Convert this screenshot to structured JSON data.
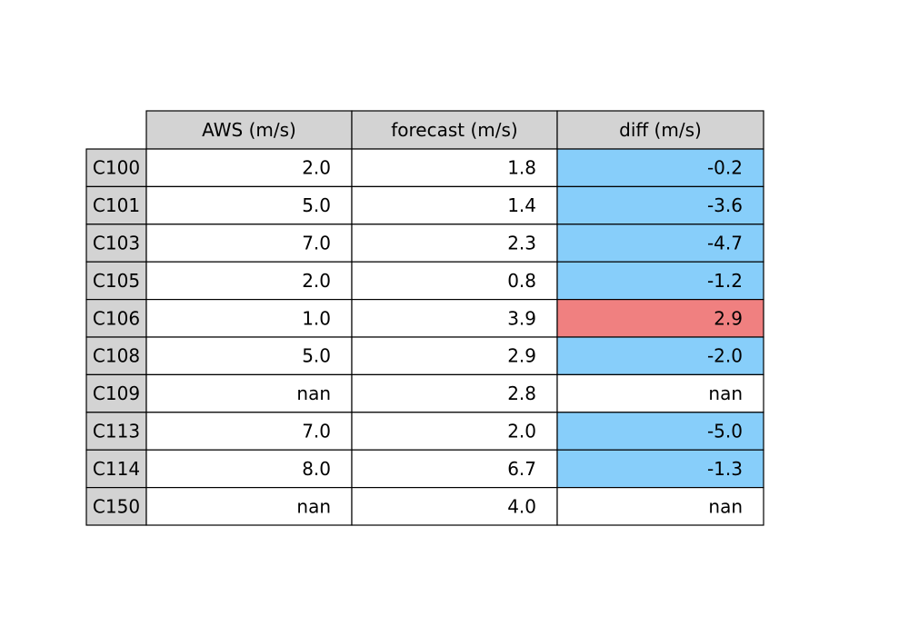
{
  "chart_data": {
    "type": "table",
    "columns": [
      "AWS (m/s)",
      "forecast (m/s)",
      "diff (m/s)"
    ],
    "rows": [
      {
        "label": "C100",
        "values": [
          "2.0",
          "1.8",
          "-0.2"
        ],
        "diff_status": "negative"
      },
      {
        "label": "C101",
        "values": [
          "5.0",
          "1.4",
          "-3.6"
        ],
        "diff_status": "negative"
      },
      {
        "label": "C103",
        "values": [
          "7.0",
          "2.3",
          "-4.7"
        ],
        "diff_status": "negative"
      },
      {
        "label": "C105",
        "values": [
          "2.0",
          "0.8",
          "-1.2"
        ],
        "diff_status": "negative"
      },
      {
        "label": "C106",
        "values": [
          "1.0",
          "3.9",
          "2.9"
        ],
        "diff_status": "positive"
      },
      {
        "label": "C108",
        "values": [
          "5.0",
          "2.9",
          "-2.0"
        ],
        "diff_status": "negative"
      },
      {
        "label": "C109",
        "values": [
          "nan",
          "2.8",
          "nan"
        ],
        "diff_status": "missing"
      },
      {
        "label": "C113",
        "values": [
          "7.0",
          "2.0",
          "-5.0"
        ],
        "diff_status": "negative"
      },
      {
        "label": "C114",
        "values": [
          "8.0",
          "6.7",
          "-1.3"
        ],
        "diff_status": "negative"
      },
      {
        "label": "C150",
        "values": [
          "nan",
          "4.0",
          "nan"
        ],
        "diff_status": "missing"
      }
    ],
    "colors": {
      "header_bg": "#d3d3d3",
      "row_label_bg": "#d3d3d3",
      "cell_bg": "#ffffff",
      "negative": "#87cefa",
      "positive": "#f08080",
      "missing": "#ffffff",
      "border": "#000000"
    }
  }
}
